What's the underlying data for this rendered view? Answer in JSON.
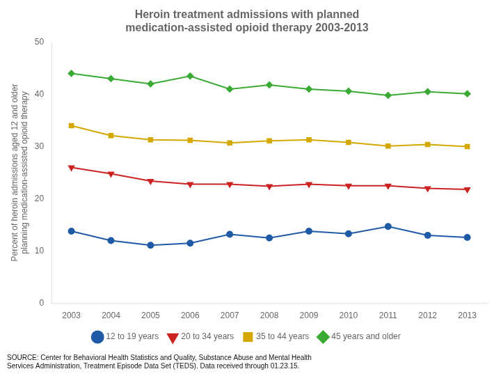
{
  "chart_data": {
    "type": "line",
    "title": "Heroin treatment admissions with planned\nmedication-assisted opioid therapy 2003-2013",
    "ylabel": "Percent of heroin admissions aged 12 and older\nplanning medication-assisted opioid therapy",
    "annotation": "SOURCE: Center for Behavioral Health Statistics and Quality, Substance Abuse and Mental Health\nServices Administration, Treatment Episode Data Set (TEDS). Data received through 01.23.15.",
    "x": [
      2003,
      2004,
      2005,
      2006,
      2007,
      2008,
      2009,
      2010,
      2011,
      2012,
      2013
    ],
    "xlim": [
      2002.5,
      2013.5
    ],
    "xticks": [
      2003,
      2004,
      2005,
      2006,
      2007,
      2008,
      2009,
      2010,
      2011,
      2012,
      2013
    ],
    "ylim": [
      0,
      50
    ],
    "yticks": [
      0,
      10,
      20,
      30,
      40,
      50
    ],
    "grid": false,
    "legend": "bottom",
    "series": [
      {
        "name": "12 to 19 years",
        "color": "#1f5aa6",
        "marker": "circle",
        "values": [
          13.8,
          12.0,
          11.1,
          11.5,
          13.2,
          12.5,
          13.8,
          13.3,
          14.7,
          13.0,
          12.6
        ]
      },
      {
        "name": "20 to 34 years",
        "color": "#cc2222",
        "marker": "triangle_down",
        "values": [
          26.0,
          24.8,
          23.4,
          22.8,
          22.8,
          22.4,
          22.8,
          22.5,
          22.5,
          22.0,
          21.8
        ]
      },
      {
        "name": "35 to 44 years",
        "color": "#d4a800",
        "marker": "square",
        "values": [
          34.0,
          32.1,
          31.3,
          31.2,
          30.7,
          31.1,
          31.3,
          30.8,
          30.1,
          30.4,
          30.0
        ]
      },
      {
        "name": "45 years and older",
        "color": "#3aaa35",
        "marker": "diamond",
        "values": [
          44.0,
          43.0,
          42.0,
          43.5,
          41.0,
          41.8,
          41.0,
          40.6,
          39.8,
          40.5,
          40.1
        ]
      }
    ]
  }
}
